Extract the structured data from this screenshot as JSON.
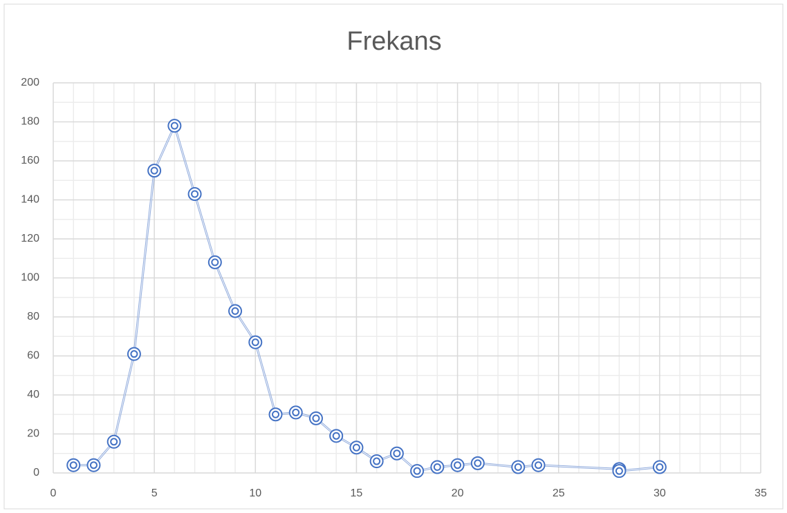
{
  "chart_data": {
    "type": "scatter",
    "title": "Frekans",
    "series": [
      {
        "name": "Frekans",
        "color": "#4472c4",
        "x": [
          1,
          2,
          3,
          4,
          5,
          6,
          7,
          8,
          9,
          10,
          11,
          12,
          13,
          14,
          15,
          16,
          17,
          18,
          19,
          20,
          21,
          23,
          24,
          28,
          28,
          30
        ],
        "values": [
          4,
          4,
          16,
          61,
          155,
          178,
          143,
          108,
          83,
          67,
          30,
          31,
          28,
          19,
          13,
          6,
          10,
          1,
          3,
          4,
          5,
          3,
          4,
          2,
          1,
          3
        ]
      }
    ],
    "xlim": [
      0,
      35
    ],
    "xticks": [
      0,
      5,
      10,
      15,
      20,
      25,
      30,
      35
    ],
    "ylim": [
      0,
      200
    ],
    "yticks": [
      0,
      20,
      40,
      60,
      80,
      100,
      120,
      140,
      160,
      180,
      200
    ],
    "grid": true,
    "lines": true
  }
}
